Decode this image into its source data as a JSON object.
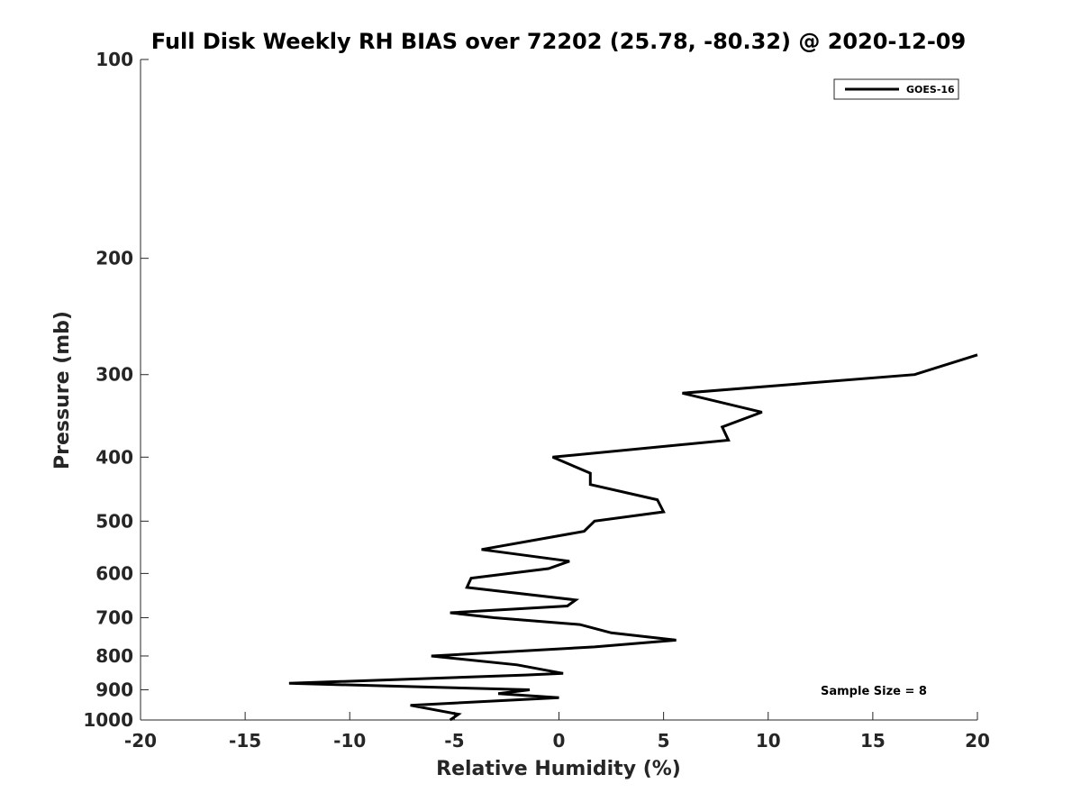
{
  "chart_data": {
    "type": "line",
    "title": "Full Disk Weekly RH BIAS over 72202 (25.78, -80.32) @ 2020-12-09",
    "xlabel": "Relative Humidity (%)",
    "ylabel": "Pressure (mb)",
    "xlim": [
      -20,
      20
    ],
    "ylim": [
      100,
      1000
    ],
    "y_scale": "log",
    "y_reversed": true,
    "grid": false,
    "xticks": [
      -20,
      -15,
      -10,
      -5,
      0,
      5,
      10,
      15,
      20
    ],
    "xtick_labels": [
      "-20",
      "-15",
      "-10",
      "-5",
      "0",
      "5",
      "10",
      "15",
      "20"
    ],
    "yticks": [
      100,
      200,
      300,
      400,
      500,
      600,
      700,
      800,
      900,
      1000
    ],
    "ytick_labels": [
      "100",
      "200",
      "300",
      "400",
      "500",
      "600",
      "700",
      "800",
      "900",
      "1000"
    ],
    "legend": {
      "placement": "top-right",
      "entries": [
        "GOES-16"
      ]
    },
    "annotation": "Sample Size = 8",
    "series": [
      {
        "name": "GOES-16",
        "color": "#000000",
        "points": [
          {
            "x": 20.0,
            "p": 280
          },
          {
            "x": 17.0,
            "p": 300
          },
          {
            "x": 5.9,
            "p": 320
          },
          {
            "x": 9.7,
            "p": 342
          },
          {
            "x": 7.8,
            "p": 360
          },
          {
            "x": 8.1,
            "p": 377
          },
          {
            "x": -0.3,
            "p": 400
          },
          {
            "x": 1.5,
            "p": 423
          },
          {
            "x": 1.5,
            "p": 440
          },
          {
            "x": 4.7,
            "p": 464
          },
          {
            "x": 5.0,
            "p": 484
          },
          {
            "x": 1.7,
            "p": 500
          },
          {
            "x": 1.2,
            "p": 518
          },
          {
            "x": -3.7,
            "p": 552
          },
          {
            "x": 0.5,
            "p": 575
          },
          {
            "x": -0.5,
            "p": 590
          },
          {
            "x": -4.2,
            "p": 610
          },
          {
            "x": -4.4,
            "p": 630
          },
          {
            "x": 0.8,
            "p": 658
          },
          {
            "x": 0.4,
            "p": 672
          },
          {
            "x": -5.2,
            "p": 688
          },
          {
            "x": -3.1,
            "p": 700
          },
          {
            "x": 1.0,
            "p": 717
          },
          {
            "x": 2.5,
            "p": 738
          },
          {
            "x": 5.6,
            "p": 757
          },
          {
            "x": 1.7,
            "p": 775
          },
          {
            "x": -6.1,
            "p": 800
          },
          {
            "x": -2.0,
            "p": 825
          },
          {
            "x": 0.2,
            "p": 850
          },
          {
            "x": -1.6,
            "p": 855
          },
          {
            "x": -12.9,
            "p": 880
          },
          {
            "x": -1.4,
            "p": 900
          },
          {
            "x": -2.9,
            "p": 912
          },
          {
            "x": 0.0,
            "p": 925
          },
          {
            "x": -7.1,
            "p": 950
          },
          {
            "x": -4.8,
            "p": 980
          },
          {
            "x": -5.2,
            "p": 1000
          }
        ]
      }
    ]
  }
}
